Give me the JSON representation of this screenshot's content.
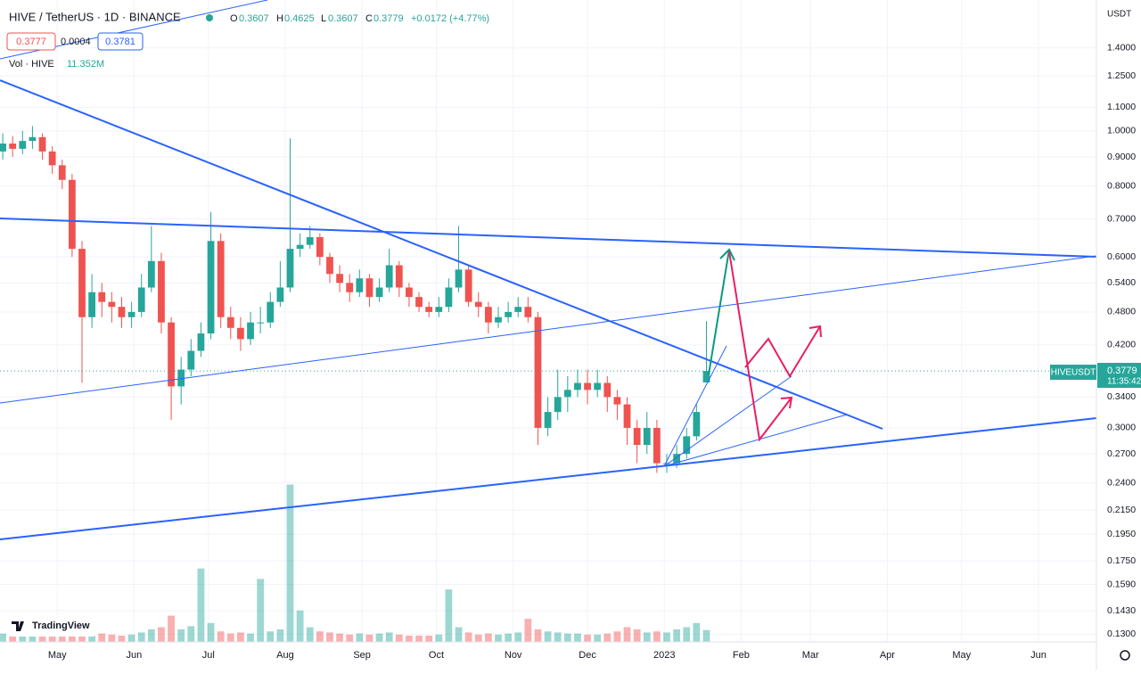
{
  "header": {
    "title": "HIVE / TetherUS · 1D · BINANCE",
    "open_label": "O",
    "open": "0.3607",
    "high_label": "H",
    "high": "0.4625",
    "low_label": "L",
    "low": "0.3607",
    "close_label": "C",
    "close": "0.3779",
    "change": "+0.0172 (+4.77%)",
    "bid": "0.3777",
    "spread": "0.0004",
    "ask": "0.3781",
    "volume_label": "Vol · HIVE",
    "volume": "11.352M",
    "currency": "USDT",
    "symbol": "HIVEUSDT",
    "countdown": "11:35:42",
    "logo": "TradingView"
  },
  "chart_data": {
    "type": "candlestick",
    "log_y": true,
    "grid": true,
    "up_color": "#26a69a",
    "down_color": "#ef5350",
    "x": [
      0,
      4,
      8,
      12,
      16,
      20,
      24,
      28,
      32,
      36,
      40,
      44,
      48,
      52,
      56,
      60,
      64,
      68,
      72,
      76,
      80,
      84,
      88,
      92,
      96,
      100,
      104,
      108,
      112,
      116,
      120,
      124,
      128,
      132,
      136,
      140,
      144,
      148,
      152,
      156,
      160,
      164,
      168,
      172,
      176,
      180,
      184,
      188,
      192,
      196,
      200,
      204,
      208,
      212,
      216,
      220,
      224,
      228,
      232,
      236,
      240,
      244,
      248,
      252,
      256,
      260,
      264,
      268,
      272,
      276,
      280,
      284
    ],
    "open": [
      0.92,
      0.95,
      0.93,
      0.96,
      0.975,
      0.92,
      0.87,
      0.82,
      0.62,
      0.47,
      0.52,
      0.5,
      0.49,
      0.47,
      0.48,
      0.53,
      0.59,
      0.46,
      0.355,
      0.38,
      0.41,
      0.44,
      0.64,
      0.47,
      0.45,
      0.43,
      0.46,
      0.46,
      0.5,
      0.53,
      0.62,
      0.63,
      0.65,
      0.6,
      0.56,
      0.54,
      0.52,
      0.55,
      0.51,
      0.53,
      0.58,
      0.53,
      0.51,
      0.49,
      0.48,
      0.49,
      0.53,
      0.57,
      0.5,
      0.49,
      0.46,
      0.47,
      0.48,
      0.49,
      0.47,
      0.3,
      0.32,
      0.34,
      0.35,
      0.36,
      0.35,
      0.36,
      0.34,
      0.33,
      0.3,
      0.28,
      0.3,
      0.26,
      0.26,
      0.27,
      0.29,
      0.3607
    ],
    "high": [
      0.99,
      0.98,
      1.0,
      1.02,
      0.99,
      0.94,
      0.89,
      0.84,
      0.64,
      0.56,
      0.54,
      0.52,
      0.51,
      0.5,
      0.56,
      0.68,
      0.61,
      0.47,
      0.4,
      0.43,
      0.46,
      0.72,
      0.66,
      0.49,
      0.47,
      0.48,
      0.49,
      0.52,
      0.59,
      0.97,
      0.66,
      0.68,
      0.66,
      0.61,
      0.58,
      0.56,
      0.57,
      0.56,
      0.55,
      0.62,
      0.59,
      0.54,
      0.52,
      0.5,
      0.51,
      0.55,
      0.68,
      0.58,
      0.52,
      0.5,
      0.49,
      0.5,
      0.51,
      0.51,
      0.48,
      0.34,
      0.38,
      0.37,
      0.38,
      0.38,
      0.38,
      0.37,
      0.35,
      0.34,
      0.31,
      0.32,
      0.31,
      0.27,
      0.28,
      0.3,
      0.33,
      0.4625
    ],
    "low": [
      0.89,
      0.9,
      0.91,
      0.93,
      0.89,
      0.84,
      0.79,
      0.6,
      0.36,
      0.45,
      0.47,
      0.46,
      0.45,
      0.45,
      0.47,
      0.52,
      0.44,
      0.31,
      0.33,
      0.37,
      0.4,
      0.43,
      0.45,
      0.43,
      0.41,
      0.42,
      0.44,
      0.45,
      0.49,
      0.52,
      0.6,
      0.62,
      0.58,
      0.54,
      0.52,
      0.5,
      0.51,
      0.49,
      0.5,
      0.52,
      0.51,
      0.49,
      0.48,
      0.47,
      0.47,
      0.48,
      0.52,
      0.49,
      0.47,
      0.44,
      0.45,
      0.46,
      0.47,
      0.46,
      0.28,
      0.29,
      0.31,
      0.32,
      0.34,
      0.33,
      0.34,
      0.32,
      0.31,
      0.28,
      0.26,
      0.27,
      0.25,
      0.25,
      0.255,
      0.265,
      0.285,
      0.3607
    ],
    "close": [
      0.95,
      0.93,
      0.96,
      0.975,
      0.92,
      0.87,
      0.82,
      0.62,
      0.47,
      0.52,
      0.5,
      0.49,
      0.47,
      0.48,
      0.53,
      0.59,
      0.46,
      0.355,
      0.38,
      0.41,
      0.44,
      0.64,
      0.47,
      0.45,
      0.43,
      0.46,
      0.46,
      0.5,
      0.53,
      0.62,
      0.63,
      0.65,
      0.6,
      0.56,
      0.54,
      0.52,
      0.55,
      0.51,
      0.53,
      0.58,
      0.53,
      0.51,
      0.49,
      0.48,
      0.49,
      0.53,
      0.57,
      0.5,
      0.49,
      0.46,
      0.47,
      0.48,
      0.49,
      0.47,
      0.3,
      0.32,
      0.34,
      0.35,
      0.36,
      0.35,
      0.36,
      0.34,
      0.33,
      0.3,
      0.28,
      0.3,
      0.26,
      0.26,
      0.27,
      0.29,
      0.32,
      0.3779
    ],
    "volume": [
      8,
      6,
      7,
      9,
      7,
      8,
      10,
      12,
      20,
      10,
      8,
      7,
      6,
      7,
      9,
      12,
      14,
      25,
      12,
      15,
      70,
      18,
      10,
      8,
      9,
      8,
      60,
      10,
      12,
      150,
      30,
      14,
      10,
      9,
      8,
      7,
      8,
      7,
      8,
      9,
      7,
      6,
      6,
      6,
      7,
      50,
      14,
      9,
      7,
      8,
      7,
      8,
      9,
      22,
      12,
      10,
      9,
      8,
      8,
      7,
      7,
      8,
      10,
      14,
      12,
      9,
      10,
      9,
      12,
      14,
      18,
      11.352
    ],
    "volume_ylim": [
      0,
      170
    ],
    "xlim": [
      -1.1,
      441.4
    ],
    "xticks": [
      {
        "value": 22,
        "label": "May"
      },
      {
        "value": 53,
        "label": "Jun"
      },
      {
        "value": 83,
        "label": "Jul"
      },
      {
        "value": 114,
        "label": "Aug"
      },
      {
        "value": 145,
        "label": "Sep"
      },
      {
        "value": 175,
        "label": "Oct"
      },
      {
        "value": 206,
        "label": "Nov"
      },
      {
        "value": 236,
        "label": "Dec"
      },
      {
        "value": 267,
        "label": "2023"
      },
      {
        "value": 298,
        "label": "Feb"
      },
      {
        "value": 326,
        "label": "Mar"
      },
      {
        "value": 357,
        "label": "Apr"
      },
      {
        "value": 387,
        "label": "May"
      },
      {
        "value": 418,
        "label": "Jun"
      }
    ],
    "ylim": [
      0.126,
      1.7
    ],
    "yticks": [
      {
        "value": 1.4,
        "label": "1.4000"
      },
      {
        "value": 1.25,
        "label": "1.2500"
      },
      {
        "value": 1.1,
        "label": "1.1000"
      },
      {
        "value": 1,
        "label": "1.0000"
      },
      {
        "value": 0.9,
        "label": "0.9000"
      },
      {
        "value": 0.8,
        "label": "0.8000"
      },
      {
        "value": 0.7,
        "label": "0.7000"
      },
      {
        "value": 0.6,
        "label": "0.6000"
      },
      {
        "value": 0.54,
        "label": "0.5400"
      },
      {
        "value": 0.48,
        "label": "0.4800"
      },
      {
        "value": 0.42,
        "label": "0.4200"
      },
      {
        "value": 0.34,
        "label": "0.3400"
      },
      {
        "value": 0.3,
        "label": "0.3000"
      },
      {
        "value": 0.27,
        "label": "0.2700"
      },
      {
        "value": 0.24,
        "label": "0.2400"
      },
      {
        "value": 0.215,
        "label": "0.2150"
      },
      {
        "value": 0.195,
        "label": "0.1950"
      },
      {
        "value": 0.175,
        "label": "0.1750"
      },
      {
        "value": 0.159,
        "label": "0.1590"
      },
      {
        "value": 0.143,
        "label": "0.1430"
      },
      {
        "value": 0.13,
        "label": "0.1300"
      }
    ]
  }
}
